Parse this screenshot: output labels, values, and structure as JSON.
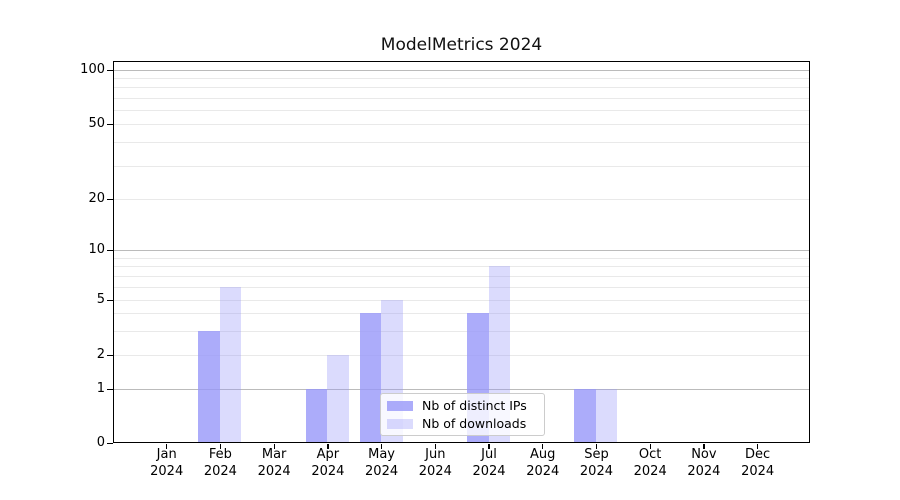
{
  "title": "ModelMetrics 2024",
  "chart_data": {
    "type": "bar",
    "title": "ModelMetrics 2024",
    "categories": [
      "Jan 2024",
      "Feb 2024",
      "Mar 2024",
      "Apr 2024",
      "May 2024",
      "Jun 2024",
      "Jul 2024",
      "Aug 2024",
      "Sep 2024",
      "Oct 2024",
      "Nov 2024",
      "Dec 2024"
    ],
    "series": [
      {
        "name": "Nb of distinct IPs",
        "color": "#9797f9",
        "alpha": 0.8,
        "rendered_color": "#acacfa",
        "values": [
          0,
          3,
          0,
          1,
          4,
          0,
          4,
          0,
          1,
          0,
          0,
          0
        ]
      },
      {
        "name": "Nb of downloads",
        "color": "#9797f9",
        "alpha": 0.35,
        "rendered_color": "#dbdbfa",
        "values": [
          0,
          6,
          0,
          2,
          5,
          0,
          8,
          0,
          1,
          0,
          0,
          0
        ]
      }
    ],
    "xlabel": "",
    "ylabel": "",
    "yscale": "symlog",
    "ytick_labels": [
      "0",
      "1",
      "2",
      "5",
      "10",
      "20",
      "50",
      "100"
    ],
    "yticks": [
      0,
      1,
      2,
      5,
      10,
      20,
      50,
      100
    ],
    "ylim": [
      0,
      100
    ],
    "grid": "both",
    "grid_major_color": "#bbbbbb",
    "grid_minor_color": "#e9e9e9",
    "legend_position": "lower-center"
  }
}
